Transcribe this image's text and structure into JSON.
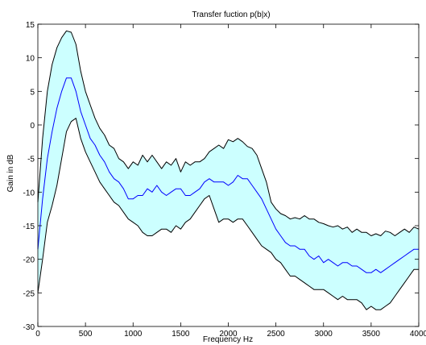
{
  "chart_data": {
    "type": "area",
    "title": "Transfer fuction p(b|x)",
    "xlabel": "Frequency Hz",
    "ylabel": "Gain in dB",
    "xlim": [
      0,
      4000
    ],
    "ylim": [
      -30,
      15
    ],
    "xticks": [
      0,
      500,
      1000,
      1500,
      2000,
      2500,
      3000,
      3500,
      4000
    ],
    "yticks": [
      -30,
      -25,
      -20,
      -15,
      -10,
      -5,
      0,
      5,
      10,
      15
    ],
    "grid": false,
    "colors": {
      "band_fill": "#ccffff",
      "bound_line": "#000000",
      "mean_line": "#0000ff"
    },
    "series": [
      {
        "role": "upper",
        "x": [
          0,
          50,
          100,
          150,
          200,
          250,
          300,
          350,
          400,
          450,
          500,
          550,
          600,
          650,
          700,
          750,
          800,
          850,
          900,
          950,
          1000,
          1050,
          1100,
          1150,
          1200,
          1250,
          1300,
          1350,
          1400,
          1450,
          1500,
          1550,
          1600,
          1650,
          1700,
          1750,
          1800,
          1850,
          1900,
          1950,
          2000,
          2050,
          2100,
          2150,
          2200,
          2250,
          2300,
          2350,
          2400,
          2450,
          2500,
          2550,
          2600,
          2650,
          2700,
          2750,
          2800,
          2850,
          2900,
          2950,
          3000,
          3050,
          3100,
          3150,
          3200,
          3250,
          3300,
          3350,
          3400,
          3450,
          3500,
          3550,
          3600,
          3650,
          3700,
          3750,
          3800,
          3850,
          3900,
          3950,
          4000
        ],
        "values": [
          -11.5,
          -2,
          5,
          9,
          11.5,
          13,
          14,
          13.8,
          12,
          8,
          5,
          3,
          1,
          -0.5,
          -1.5,
          -3,
          -3.5,
          -5,
          -5.5,
          -6.5,
          -5.5,
          -6,
          -4.5,
          -5.5,
          -4.5,
          -5.5,
          -6.5,
          -5.5,
          -6,
          -5,
          -7,
          -5.5,
          -6,
          -5.5,
          -5.5,
          -5,
          -4,
          -3.5,
          -3,
          -3.5,
          -2.2,
          -2.5,
          -2,
          -2.5,
          -3.2,
          -3.5,
          -4.5,
          -6.5,
          -8.5,
          -11.5,
          -12.5,
          -13.2,
          -13.5,
          -14,
          -13.8,
          -14,
          -13.5,
          -14,
          -14,
          -14.5,
          -14.7,
          -15,
          -15.2,
          -15,
          -15.5,
          -15.2,
          -16,
          -15.5,
          -16,
          -16,
          -16.5,
          -16.2,
          -16.5,
          -15.8,
          -16,
          -16.5,
          -16,
          -15.5,
          -16,
          -15.2,
          -15.5
        ]
      },
      {
        "role": "mean",
        "x": [
          0,
          50,
          100,
          150,
          200,
          250,
          300,
          350,
          400,
          450,
          500,
          550,
          600,
          650,
          700,
          750,
          800,
          850,
          900,
          950,
          1000,
          1050,
          1100,
          1150,
          1200,
          1250,
          1300,
          1350,
          1400,
          1450,
          1500,
          1550,
          1600,
          1650,
          1700,
          1750,
          1800,
          1850,
          1900,
          1950,
          2000,
          2050,
          2100,
          2150,
          2200,
          2250,
          2300,
          2350,
          2400,
          2450,
          2500,
          2550,
          2600,
          2650,
          2700,
          2750,
          2800,
          2850,
          2900,
          2950,
          3000,
          3050,
          3100,
          3150,
          3200,
          3250,
          3300,
          3350,
          3400,
          3450,
          3500,
          3550,
          3600,
          3650,
          3700,
          3750,
          3800,
          3850,
          3900,
          3950,
          4000
        ],
        "values": [
          -18.5,
          -11,
          -5,
          -1,
          2.5,
          5,
          7,
          7,
          5,
          2,
          0,
          -2,
          -3,
          -4.5,
          -5.5,
          -7,
          -8,
          -8.5,
          -9.5,
          -11,
          -11,
          -10.5,
          -10.5,
          -9.5,
          -10,
          -9,
          -10,
          -10.5,
          -10,
          -9.5,
          -9.5,
          -10.5,
          -10.5,
          -10,
          -9.5,
          -8.5,
          -8,
          -8.5,
          -8.5,
          -8.5,
          -9,
          -8.5,
          -7.5,
          -8,
          -8,
          -9,
          -10,
          -11,
          -12.5,
          -14,
          -15.5,
          -16.5,
          -17.5,
          -18,
          -18,
          -18.5,
          -18.5,
          -19.5,
          -20,
          -19.5,
          -20.5,
          -20,
          -20.5,
          -21,
          -20.5,
          -20.5,
          -21,
          -21,
          -21.5,
          -22,
          -22,
          -21.5,
          -22,
          -21.5,
          -21,
          -20.5,
          -20,
          -19.5,
          -19,
          -18.5,
          -18.5
        ]
      },
      {
        "role": "lower",
        "x": [
          0,
          50,
          100,
          150,
          200,
          250,
          300,
          350,
          400,
          450,
          500,
          550,
          600,
          650,
          700,
          750,
          800,
          850,
          900,
          950,
          1000,
          1050,
          1100,
          1150,
          1200,
          1250,
          1300,
          1350,
          1400,
          1450,
          1500,
          1550,
          1600,
          1650,
          1700,
          1750,
          1800,
          1850,
          1900,
          1950,
          2000,
          2050,
          2100,
          2150,
          2200,
          2250,
          2300,
          2350,
          2400,
          2450,
          2500,
          2550,
          2600,
          2650,
          2700,
          2750,
          2800,
          2850,
          2900,
          2950,
          3000,
          3050,
          3100,
          3150,
          3200,
          3250,
          3300,
          3350,
          3400,
          3450,
          3500,
          3550,
          3600,
          3650,
          3700,
          3750,
          3800,
          3850,
          3900,
          3950,
          4000
        ],
        "values": [
          -25,
          -20,
          -14.5,
          -12,
          -9,
          -5,
          -1,
          0.5,
          1,
          -2,
          -4,
          -5.5,
          -7,
          -8.5,
          -9.5,
          -10.5,
          -11.5,
          -12,
          -13,
          -14,
          -14.5,
          -15,
          -16,
          -16.5,
          -16.5,
          -16,
          -15.5,
          -15.5,
          -16,
          -15,
          -15.5,
          -14.5,
          -14,
          -13,
          -12,
          -11,
          -10.5,
          -12.5,
          -14.5,
          -14,
          -14,
          -14.5,
          -14,
          -14,
          -15,
          -16,
          -17,
          -18,
          -18.5,
          -19,
          -20,
          -20.5,
          -21.5,
          -22.5,
          -22.5,
          -23,
          -23.5,
          -24,
          -24.5,
          -24.5,
          -24.5,
          -25,
          -25.5,
          -26,
          -25.5,
          -26,
          -26,
          -26,
          -26.5,
          -27.5,
          -27,
          -27.5,
          -27.5,
          -27,
          -26.5,
          -25.5,
          -24.5,
          -23.5,
          -22.5,
          -21.5,
          -21.5
        ]
      }
    ]
  }
}
